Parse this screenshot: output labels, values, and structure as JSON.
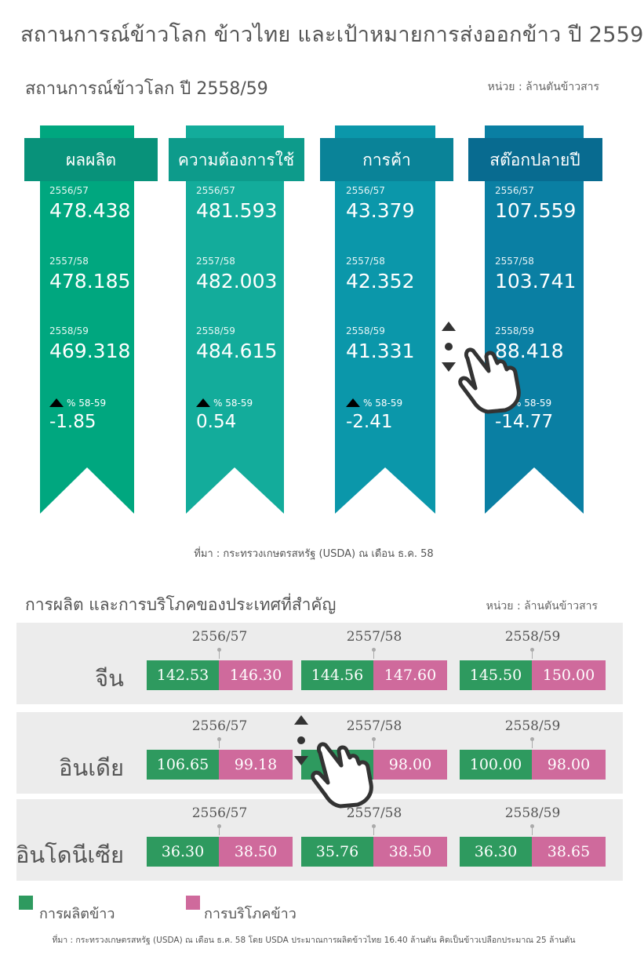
{
  "title": "สถานการณ์ข้าวโลก ข้าวไทย และเป้าหมายการส่งออกข้าว ปี 2559",
  "section1": {
    "title": "สถานการณ์ข้าวโลก ปี 2558/59",
    "unit": "หน่วย : ล้านตันข้าวสาร",
    "source": "ที่มา : กระทรวงเกษตรสหรัฐ (USDA) ณ เดือน ธ.ค. 58",
    "change_label": "% 58-59"
  },
  "section2": {
    "title": "การผลิต และการบริโภคของประเทศที่สำคัญ",
    "unit": "หน่วย : ล้านตันข้าวสาร",
    "source": "ที่มา : กระทรวงเกษตรสหรัฐ (USDA) ณ เดือน ธ.ค. 58 โดย USDA ประมาณการผลิตข้าวไทย 16.40 ล้านตัน คิดเป็นข้าวเปลือกประมาณ 25 ล้านตัน",
    "legend": [
      {
        "label": "การผลิตข้าว",
        "color": "#2e9a5f"
      },
      {
        "label": "การบริโภคข้าว",
        "color": "#cf6a9c"
      }
    ]
  },
  "chart_data": [
    {
      "type": "table",
      "title": "สถานการณ์ข้าวโลก ปี 2558/59",
      "periods": [
        "2556/57",
        "2557/58",
        "2558/59"
      ],
      "series": [
        {
          "name": "ผลผลิต",
          "values": [
            "478.438",
            "478.185",
            "469.318"
          ],
          "change": "-1.85",
          "color": "#00a77f"
        },
        {
          "name": "ความต้องการใช้",
          "values": [
            "481.593",
            "482.003",
            "484.615"
          ],
          "change": "0.54",
          "color": "#13ac9b"
        },
        {
          "name": "การค้า",
          "values": [
            "43.379",
            "42.352",
            "41.331"
          ],
          "change": "-2.41",
          "color": "#0b97aa"
        },
        {
          "name": "สต๊อกปลายปี",
          "values": [
            "107.559",
            "103.741",
            "88.418"
          ],
          "change": "-14.77",
          "color": "#0a7fa3"
        }
      ]
    },
    {
      "type": "table",
      "title": "การผลิต และการบริโภคของประเทศที่สำคัญ",
      "periods": [
        "2556/57",
        "2557/58",
        "2558/59"
      ],
      "countries": [
        {
          "name": "จีน",
          "production": [
            "142.53",
            "144.56",
            "145.50"
          ],
          "consumption": [
            "146.30",
            "147.60",
            "150.00"
          ]
        },
        {
          "name": "อินเดีย",
          "production": [
            "106.65",
            "",
            "100.00"
          ],
          "consumption": [
            "99.18",
            "98.00",
            "98.00"
          ]
        },
        {
          "name": "อินโดนีเซีย",
          "production": [
            "36.30",
            "35.76",
            "36.30"
          ],
          "consumption": [
            "38.50",
            "38.50",
            "38.65"
          ]
        }
      ]
    }
  ]
}
